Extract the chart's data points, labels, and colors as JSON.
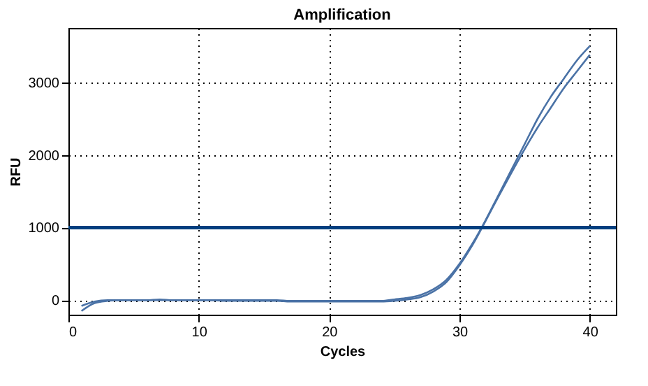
{
  "chart_data": {
    "type": "line",
    "title": "Amplification",
    "xlabel": "Cycles",
    "ylabel": "RFU",
    "x": [
      1,
      2,
      3,
      4,
      5,
      6,
      7,
      8,
      9,
      10,
      11,
      12,
      13,
      14,
      15,
      16,
      17,
      18,
      19,
      20,
      21,
      22,
      23,
      24,
      25,
      26,
      27,
      28,
      29,
      30,
      31,
      32,
      33,
      34,
      35,
      36,
      37,
      38,
      39,
      40
    ],
    "series": [
      {
        "color": "#4a72a6",
        "values": [
          -80,
          -20,
          0,
          0,
          0,
          0,
          10,
          0,
          0,
          0,
          0,
          0,
          0,
          0,
          0,
          0,
          -10,
          -10,
          -10,
          -10,
          -10,
          -10,
          -10,
          -10,
          10,
          30,
          70,
          150,
          280,
          500,
          780,
          1100,
          1450,
          1800,
          2150,
          2500,
          2800,
          3050,
          3300,
          3500
        ]
      },
      {
        "color": "#4a72a6",
        "values": [
          -150,
          -40,
          -10,
          0,
          0,
          0,
          0,
          0,
          0,
          0,
          0,
          -10,
          -10,
          -10,
          -10,
          -10,
          -20,
          -20,
          -20,
          -20,
          -20,
          -20,
          -20,
          -20,
          -10,
          10,
          40,
          120,
          250,
          480,
          760,
          1090,
          1430,
          1760,
          2080,
          2380,
          2650,
          2920,
          3150,
          3380
        ]
      }
    ],
    "xlim": [
      0,
      42
    ],
    "xticks": [
      0,
      10,
      20,
      30,
      40
    ],
    "ylim": [
      -200,
      3750
    ],
    "yticks": [
      0,
      1000,
      2000,
      3000
    ],
    "grid": true,
    "ref_lines": [
      {
        "axis": "y",
        "value": 1000,
        "color": "#003f7f"
      }
    ]
  }
}
